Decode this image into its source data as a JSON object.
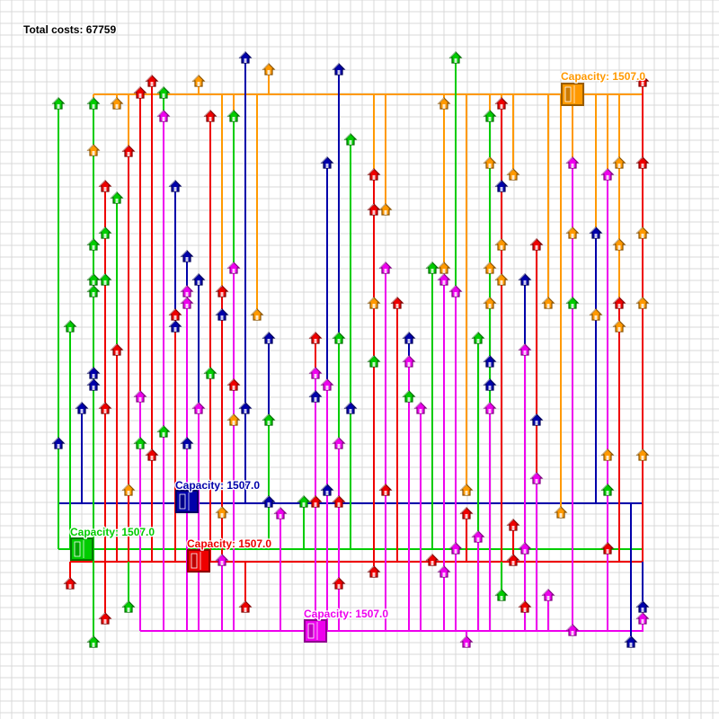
{
  "header": {
    "total_costs": "Total costs: 67759"
  },
  "palette": {
    "grid": "#d9d9d9",
    "orange": "#ff9900",
    "blue": "#0000aa",
    "green": "#00cc00",
    "red": "#ee0000",
    "magenta": "#ee00ee"
  },
  "facilities": [
    {
      "id": "orange",
      "color": "#ff9900",
      "capacity_label": "Capacity: 1507.0"
    },
    {
      "id": "blue",
      "color": "#0000aa",
      "capacity_label": "Capacity: 1507.0"
    },
    {
      "id": "green",
      "color": "#00cc00",
      "capacity_label": "Capacity: 1507.0"
    },
    {
      "id": "red",
      "color": "#ee0000",
      "capacity_label": "Capacity: 1507.0"
    },
    {
      "id": "magenta",
      "color": "#ee00ee",
      "capacity_label": "Capacity: 1507.0"
    }
  ],
  "icons": {
    "facility": "warehouse-icon",
    "customer": "house-icon"
  }
}
